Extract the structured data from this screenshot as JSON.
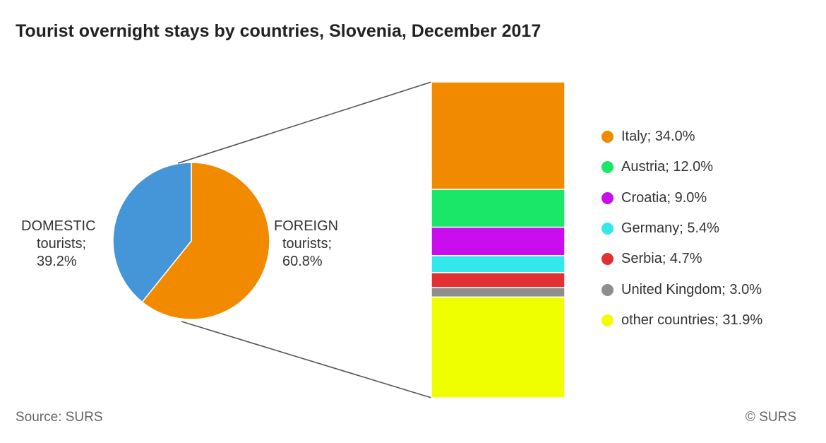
{
  "chart_data": {
    "type": "pie",
    "title": "Tourist overnight stays by countries, Slovenia, December 2017",
    "pie": {
      "slices": [
        {
          "key": "domestic",
          "label_line1": "DOMESTIC",
          "label_line2": "tourists;",
          "label_value": "39.2%",
          "value": 39.2,
          "color": "#4596d8"
        },
        {
          "key": "foreign",
          "label_line1": "FOREIGN",
          "label_line2": "tourists;",
          "label_value": "60.8%",
          "value": 60.8,
          "color": "#f28a00"
        }
      ]
    },
    "breakdown": {
      "type": "stacked-bar",
      "of": "foreign",
      "segments": [
        {
          "name": "Italy",
          "label": "Italy; 34.0%",
          "value": 34.0,
          "color": "#f28a00"
        },
        {
          "name": "Austria",
          "label": "Austria; 12.0%",
          "value": 12.0,
          "color": "#1ae667"
        },
        {
          "name": "Croatia",
          "label": "Croatia; 9.0%",
          "value": 9.0,
          "color": "#c90ded"
        },
        {
          "name": "Germany",
          "label": "Germany; 5.4%",
          "value": 5.4,
          "color": "#33e8ea"
        },
        {
          "name": "Serbia",
          "label": "Serbia; 4.7%",
          "value": 4.7,
          "color": "#e33131"
        },
        {
          "name": "United Kingdom",
          "label": "United Kingdom; 3.0%",
          "value": 3.0,
          "color": "#8e8e8e"
        },
        {
          "name": "other countries",
          "label": "other countries; 31.9%",
          "value": 31.9,
          "color": "#f0ff00"
        }
      ]
    },
    "legend_position": "right"
  },
  "footer": {
    "source": "Source: SURS",
    "copyright": "© SURS"
  }
}
